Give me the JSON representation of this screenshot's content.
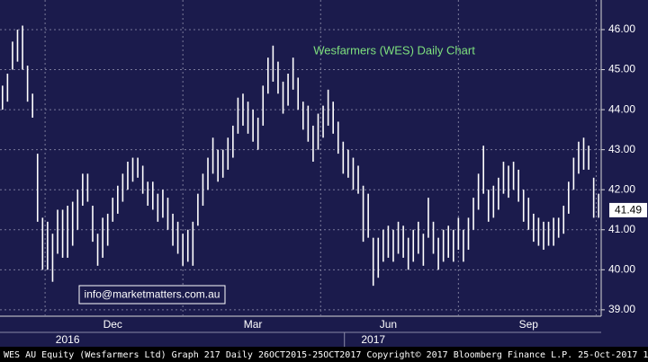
{
  "chart_data": {
    "type": "hlbar",
    "title": "Wesfarmers (WES) Daily Chart",
    "watermark": "info@marketmatters.com.au",
    "footer": "WES AU Equity (Wesfarmers Ltd) Graph 217  Daily 26OCT2015-25OCT2017  Copyright© 2017 Bloomberg Finance L.P.  25-Oct-2017 16:19:52",
    "color": "#ffffff",
    "ylim": [
      38.84,
      46.74
    ],
    "yticks": [
      {
        "value": 39,
        "label": "39.00"
      },
      {
        "value": 40,
        "label": "40.00"
      },
      {
        "value": 41,
        "label": "41.00"
      },
      {
        "value": 42,
        "label": "42.00"
      },
      {
        "value": 43,
        "label": "43.00"
      },
      {
        "value": 44,
        "label": "44.00"
      },
      {
        "value": 45,
        "label": "45.00"
      },
      {
        "value": 46,
        "label": "46.00"
      }
    ],
    "grid": true,
    "last_price": 41.49,
    "categories": [
      null,
      null,
      null,
      null,
      null,
      null,
      null,
      null,
      null,
      null,
      null,
      null,
      null,
      null,
      null,
      null,
      null,
      null,
      null,
      null,
      null,
      null,
      "Dec",
      null,
      null,
      null,
      null,
      null,
      null,
      null,
      null,
      null,
      null,
      null,
      null,
      null,
      null,
      null,
      null,
      null,
      null,
      null,
      null,
      null,
      null,
      null,
      null,
      null,
      null,
      null,
      "Mar",
      null,
      null,
      null,
      null,
      null,
      null,
      null,
      null,
      null,
      null,
      null,
      null,
      null,
      null,
      null,
      null,
      null,
      null,
      null,
      null,
      null,
      null,
      null,
      null,
      null,
      null,
      "Jun",
      null,
      null,
      null,
      null,
      null,
      null,
      null,
      null,
      null,
      null,
      null,
      null,
      null,
      null,
      null,
      null,
      null,
      null,
      null,
      null,
      null,
      null,
      null,
      null,
      null,
      null,
      null,
      "Sep",
      null,
      null,
      null,
      null,
      null,
      null,
      null,
      null,
      null,
      null,
      null,
      null,
      null,
      null
    ],
    "years": [
      null,
      null,
      null,
      null,
      null,
      null,
      null,
      null,
      null,
      null,
      null,
      null,
      null,
      "2016",
      null,
      null,
      null,
      null,
      null,
      null,
      null,
      null,
      null,
      null,
      null,
      null,
      null,
      null,
      null,
      null,
      null,
      null,
      null,
      null,
      null,
      null,
      null,
      null,
      null,
      null,
      null,
      null,
      null,
      null,
      null,
      null,
      null,
      null,
      null,
      null,
      null,
      null,
      null,
      null,
      null,
      null,
      null,
      null,
      null,
      null,
      null,
      null,
      null,
      null,
      null,
      null,
      null,
      null,
      null,
      null,
      null,
      null,
      null,
      null,
      "2017",
      null,
      null,
      null,
      null,
      null,
      null,
      null,
      null,
      null,
      null,
      null,
      null,
      null,
      null,
      null,
      null,
      null,
      null,
      null,
      null,
      null,
      null,
      null,
      null,
      null,
      null,
      null,
      null,
      null,
      null,
      null,
      null,
      null,
      null,
      null,
      null,
      null,
      null,
      null,
      null,
      null,
      null,
      null,
      null,
      null
    ],
    "high": [
      44.6,
      44.9,
      45.7,
      46.0,
      46.1,
      45.1,
      44.4,
      42.9,
      41.3,
      41.2,
      40.9,
      41.5,
      41.5,
      41.6,
      41.7,
      42.0,
      42.4,
      42.4,
      41.6,
      40.9,
      41.3,
      41.4,
      41.8,
      42.1,
      42.4,
      42.7,
      42.8,
      42.8,
      42.6,
      42.2,
      42.2,
      41.9,
      42.0,
      41.8,
      41.4,
      41.2,
      40.9,
      41.0,
      41.2,
      41.9,
      42.4,
      42.8,
      43.3,
      43.0,
      43.0,
      43.3,
      43.6,
      44.3,
      44.4,
      44.2,
      44.0,
      43.8,
      44.6,
      45.3,
      45.6,
      45.2,
      44.7,
      44.9,
      45.3,
      44.8,
      44.2,
      44.1,
      43.6,
      43.9,
      44.1,
      44.5,
      44.2,
      43.7,
      43.2,
      43.0,
      42.8,
      42.6,
      42.1,
      41.9,
      40.8,
      40.8,
      41.0,
      41.1,
      41.0,
      41.2,
      41.1,
      40.8,
      41.0,
      41.2,
      40.9,
      41.8,
      41.2,
      40.8,
      41.0,
      41.1,
      41.0,
      41.3,
      41.0,
      41.3,
      41.8,
      42.4,
      43.1,
      42.0,
      42.1,
      42.3,
      42.7,
      42.6,
      42.7,
      42.5,
      42.0,
      41.8,
      41.4,
      41.3,
      41.2,
      41.2,
      41.3,
      41.3,
      41.6,
      42.2,
      42.8,
      43.2,
      43.3,
      43.1,
      42.3,
      41.9
    ],
    "low": [
      44.0,
      44.2,
      45.0,
      45.2,
      45.0,
      44.2,
      43.8,
      41.2,
      40.0,
      40.0,
      39.7,
      40.4,
      40.3,
      40.3,
      40.6,
      41.0,
      41.6,
      41.7,
      40.7,
      40.1,
      40.3,
      40.6,
      41.2,
      41.4,
      41.7,
      42.0,
      42.2,
      42.3,
      41.9,
      41.6,
      41.5,
      41.2,
      41.3,
      41.0,
      40.6,
      40.4,
      40.1,
      40.2,
      40.1,
      41.1,
      41.6,
      42.0,
      42.4,
      42.2,
      42.3,
      42.5,
      42.8,
      43.4,
      43.6,
      43.4,
      43.2,
      43.0,
      43.6,
      44.4,
      44.7,
      44.4,
      43.9,
      44.1,
      44.5,
      44.0,
      43.5,
      43.2,
      42.7,
      43.0,
      43.3,
      43.6,
      43.4,
      42.9,
      42.4,
      42.3,
      42.0,
      41.9,
      40.7,
      40.8,
      39.6,
      39.8,
      40.2,
      40.3,
      40.2,
      40.4,
      40.3,
      40.0,
      40.2,
      40.4,
      40.1,
      40.8,
      40.4,
      40.0,
      40.2,
      40.3,
      40.2,
      40.5,
      40.2,
      40.5,
      41.0,
      41.5,
      41.9,
      41.2,
      41.3,
      41.5,
      41.9,
      41.8,
      42.0,
      41.7,
      41.2,
      41.0,
      40.7,
      40.6,
      40.5,
      40.6,
      40.6,
      40.8,
      40.9,
      41.4,
      42.0,
      42.4,
      42.5,
      42.5,
      41.3,
      41.3
    ]
  }
}
